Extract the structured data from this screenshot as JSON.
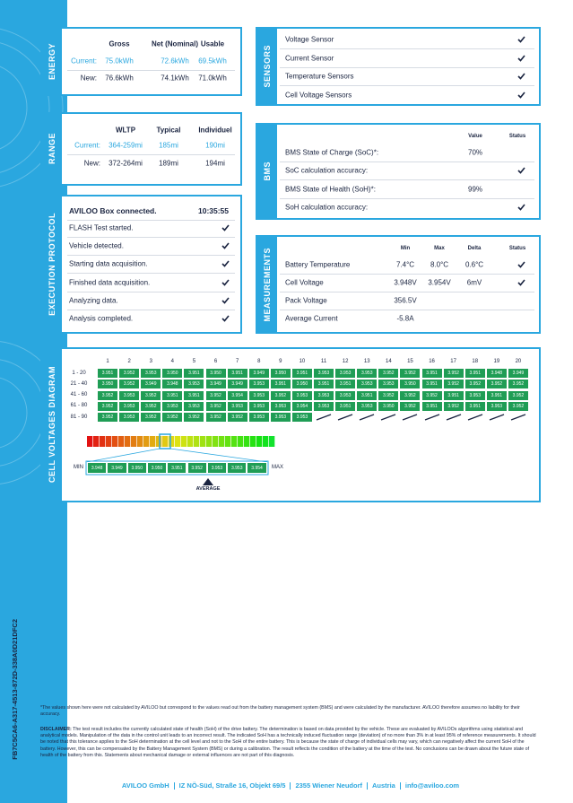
{
  "document_id": "FB7C5CA6-A317-4513-872D-338A0D21DFC2",
  "energy": {
    "title": "ENERGY",
    "columns": [
      "Gross",
      "Net (Nominal)",
      "Usable"
    ],
    "rows": [
      {
        "label": "Current:",
        "values": [
          "75.0kWh",
          "72.6kWh",
          "69.5kWh"
        ]
      },
      {
        "label": "New:",
        "values": [
          "76.6kWh",
          "74.1kWh",
          "71.0kWh"
        ]
      }
    ]
  },
  "sensors": {
    "title": "SENSORS",
    "items": [
      "Voltage Sensor",
      "Current Sensor",
      "Temperature Sensors",
      "Cell Voltage Sensors"
    ]
  },
  "range": {
    "title": "RANGE",
    "columns": [
      "WLTP",
      "Typical",
      "Individuel"
    ],
    "rows": [
      {
        "label": "Current:",
        "values": [
          "364-259mi",
          "185mi",
          "190mi"
        ]
      },
      {
        "label": "New:",
        "values": [
          "372-264mi",
          "189mi",
          "194mi"
        ]
      }
    ]
  },
  "bms": {
    "title": "BMS",
    "columns": [
      "Value",
      "Status"
    ],
    "rows": [
      {
        "label": "BMS State of Charge (SoC)*:",
        "value": "70%"
      },
      {
        "label": "SoC calculation accuracy:"
      },
      {
        "label": "BMS State of Health (SoH)*:",
        "value": "99%"
      },
      {
        "label": "SoH calculation accuracy:"
      }
    ]
  },
  "execution_protocol": {
    "title": "EXECUTION PROTOCOL",
    "header": "AVILOO Box connected.",
    "time": "10:35:55",
    "steps": [
      "FLASH Test started.",
      "Vehicle detected.",
      "Starting data acquisition.",
      "Finished data acquisition.",
      "Analyzing data.",
      "Analysis completed."
    ]
  },
  "measurements": {
    "title": "MEASUREMENTS",
    "columns": [
      "Min",
      "Max",
      "Delta",
      "Status"
    ],
    "rows": [
      {
        "label": "Battery Temperature",
        "values": [
          "7.4°C",
          "8.0°C",
          "0.6°C"
        ]
      },
      {
        "label": "Cell Voltage",
        "values": [
          "3.948V",
          "3.954V",
          "6mV"
        ]
      },
      {
        "label": "Pack Voltage",
        "values": [
          "356.5V"
        ]
      },
      {
        "label": "Average Current",
        "values": [
          "-5.8A"
        ]
      }
    ]
  },
  "cell_voltages": {
    "title": "CELL VOLTAGES DIAGRAM",
    "columns": [
      "1",
      "2",
      "3",
      "4",
      "5",
      "6",
      "7",
      "8",
      "9",
      "10",
      "11",
      "12",
      "13",
      "14",
      "15",
      "16",
      "17",
      "18",
      "19",
      "20"
    ],
    "rows": [
      {
        "label": "1 - 20",
        "values": [
          "3.951",
          "3.952",
          "3.953",
          "3.950",
          "3.951",
          "3.950",
          "3.951",
          "3.949",
          "3.950",
          "3.951",
          "3.953",
          "3.953",
          "3.953",
          "3.952",
          "3.952",
          "3.951",
          "3.952",
          "3.951",
          "3.948",
          "3.949"
        ]
      },
      {
        "label": "21 - 40",
        "values": [
          "3.950",
          "3.952",
          "3.949",
          "3.948",
          "3.953",
          "3.949",
          "3.949",
          "3.953",
          "3.951",
          "3.950",
          "3.951",
          "3.951",
          "3.953",
          "3.953",
          "3.950",
          "3.951",
          "3.952",
          "3.952",
          "3.952",
          "3.952"
        ]
      },
      {
        "label": "41 - 60",
        "values": [
          "3.952",
          "3.953",
          "3.952",
          "3.951",
          "3.951",
          "3.952",
          "3.954",
          "3.953",
          "3.952",
          "3.953",
          "3.953",
          "3.953",
          "3.951",
          "3.952",
          "3.952",
          "3.952",
          "3.951",
          "3.953",
          "3.951",
          "3.952"
        ]
      },
      {
        "label": "61 - 80",
        "values": [
          "3.952",
          "3.953",
          "3.952",
          "3.953",
          "3.953",
          "3.952",
          "3.953",
          "3.953",
          "3.953",
          "3.954",
          "3.953",
          "3.951",
          "3.953",
          "3.950",
          "3.952",
          "3.951",
          "3.952",
          "3.951",
          "3.953",
          "3.952"
        ]
      },
      {
        "label": "81 - 90",
        "values": [
          "3.952",
          "3.953",
          "3.952",
          "3.952",
          "3.952",
          "3.952",
          "3.952",
          "3.953",
          "3.953",
          "3.953"
        ]
      }
    ],
    "scale": {
      "min_label": "MIN",
      "max_label": "MAX",
      "average_label": "AVERAGE",
      "values": [
        "3.948",
        "3.949",
        "3.950",
        "3.950",
        "3.951",
        "3.952",
        "3.953",
        "3.953",
        "3.954"
      ]
    }
  },
  "footnote": "*The values shown here were not calculated by AVILOO but correspond to the values read out from the battery management system (BMS) and were calculated by the manufacturer. AVILOO therefore assumes no liability for their accuracy.",
  "disclaimer": {
    "label": "DISCLAIMER:",
    "text": "The test result includes the currently calculated state of health (SoH) of the drive battery. The determination is based on data provided by the vehicle. These are evaluated by AVILOOs algorithms using statistical and analytical models. Manipulation of the data in the control unit leads to an incorrect result. The indicated SoH has a technically induced fluctuation range (deviation) of no more than 3% in at least 95% of reference measurements. It should be noted that this tolerance applies to the SoH determination at the cell level and not to the SoH of the entire battery. This is because the state of charge of individual cells may vary, which can negatively affect the current SoH of the battery. However, this can be compensated by the Battery Management System (BMS) or during a calibration. The result reflects the condition of the battery at the time of the test. No conclusions can be drawn about the future state of health of the battery from this. Statements about mechanical damage or external influences are not part of this diagnosis."
  },
  "footer": {
    "company": "AVILOO GmbH",
    "items": [
      "IZ NÖ-Süd, Straße 16, Objekt 69/5",
      "2355 Wiener Neudorf",
      "Austria",
      "info@aviloo.com"
    ]
  }
}
